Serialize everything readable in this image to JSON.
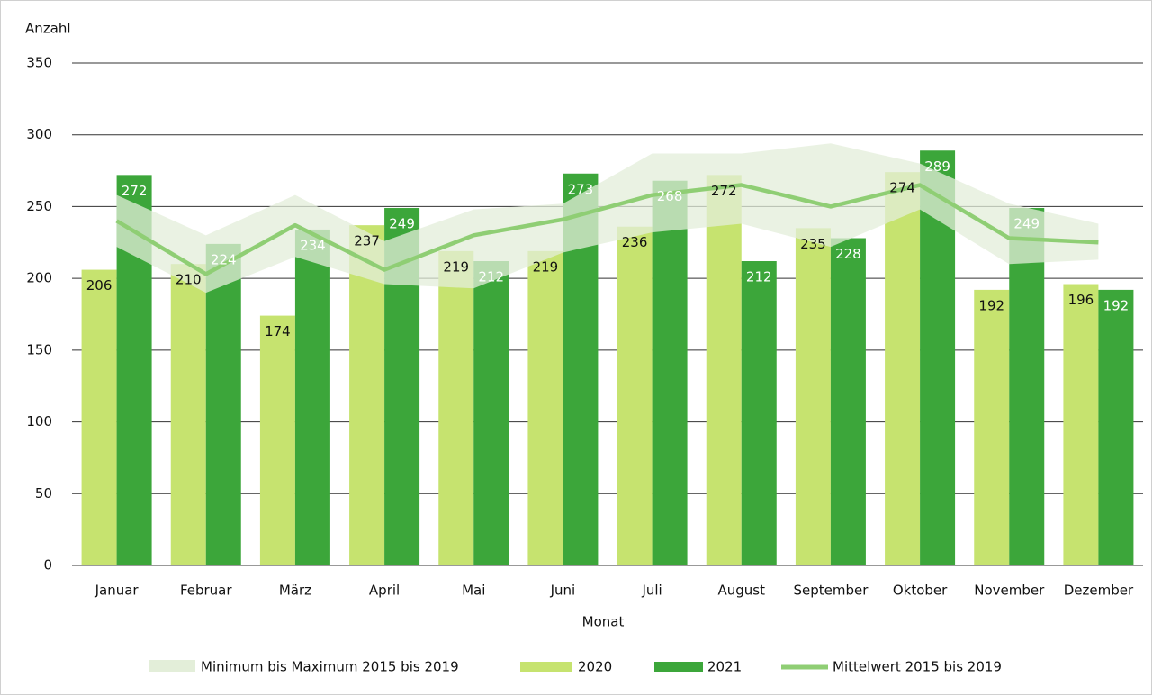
{
  "chart_data": {
    "type": "bar",
    "y_label": "Anzahl",
    "x_label": "Monat",
    "categories": [
      "Januar",
      "Februar",
      "März",
      "April",
      "Mai",
      "Juni",
      "Juli",
      "August",
      "September",
      "Oktober",
      "November",
      "Dezember"
    ],
    "band": {
      "name": "Minimum bis Maximum 2015 bis 2019",
      "color": "#e3eed9",
      "low": [
        222,
        190,
        215,
        196,
        193,
        218,
        232,
        238,
        222,
        248,
        210,
        213
      ],
      "high": [
        258,
        230,
        258,
        226,
        248,
        252,
        287,
        287,
        294,
        280,
        252,
        238
      ]
    },
    "series": [
      {
        "name": "2020",
        "color": "#c6e36f",
        "label_color": "#111111",
        "values": [
          206,
          210,
          174,
          237,
          219,
          219,
          236,
          272,
          235,
          274,
          192,
          196
        ]
      },
      {
        "name": "2021",
        "color": "#3ca63a",
        "label_color": "#ffffff",
        "values": [
          272,
          224,
          234,
          249,
          212,
          273,
          268,
          212,
          228,
          289,
          249,
          192
        ]
      }
    ],
    "line": {
      "name": "Mittelwert 2015 bis 2019",
      "color": "#8fce74",
      "values": [
        240,
        203,
        237,
        206,
        230,
        241,
        258,
        265,
        250,
        265,
        228,
        225
      ]
    },
    "ylim": [
      0,
      350
    ],
    "yticks": [
      0,
      50,
      100,
      150,
      200,
      250,
      300,
      350
    ],
    "grid": true
  }
}
